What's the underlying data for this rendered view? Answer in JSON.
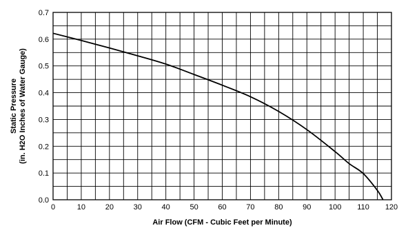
{
  "chart_data": {
    "type": "line",
    "title": "",
    "xlabel": "Air Flow (CFM - Cubic Feet per Minute)",
    "ylabel_lines": [
      "Static Pressure",
      "(in. H2O Inches of Water Gauge)"
    ],
    "xlim": [
      0,
      120
    ],
    "ylim": [
      0,
      0.7
    ],
    "x_ticks": [
      0,
      10,
      20,
      30,
      40,
      50,
      60,
      70,
      80,
      90,
      100,
      110,
      120
    ],
    "y_ticks": [
      "0.0",
      "0.1",
      "0.2",
      "0.3",
      "0.4",
      "0.5",
      "0.6",
      "0.7"
    ],
    "x_minor_step": 5,
    "y_minor_step": 0.05,
    "grid": true,
    "legend": "none",
    "series": [
      {
        "x": [
          0,
          10,
          20,
          30,
          40,
          50,
          60,
          70,
          80,
          90,
          100,
          105,
          110,
          115,
          117
        ],
        "y": [
          0.622,
          0.595,
          0.567,
          0.538,
          0.507,
          0.468,
          0.428,
          0.385,
          0.33,
          0.262,
          0.18,
          0.135,
          0.098,
          0.035,
          0.0
        ]
      }
    ]
  }
}
